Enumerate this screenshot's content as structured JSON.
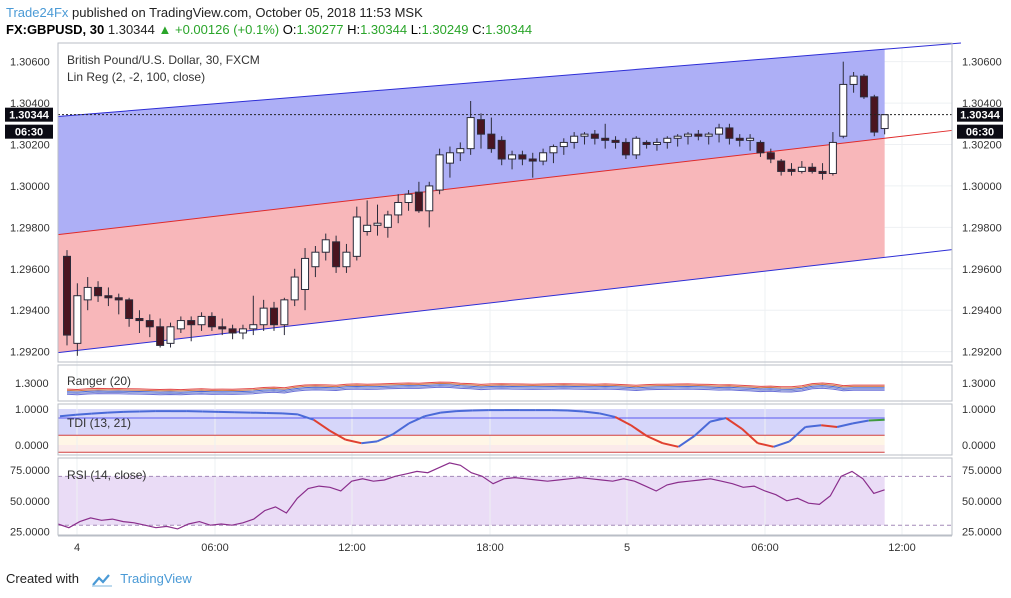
{
  "header": {
    "author": "Trade24Fx",
    "published_text": "published on TradingView.com, October 05, 2018 11:53 MSK",
    "symbol": "FX:GBPUSD, 30",
    "last": "1.30344",
    "change": "+0.00126 (+0.1%)",
    "o_label": "O:",
    "o_value": "1.30277",
    "h_label": "H:",
    "h_value": "1.30344",
    "l_label": "L:",
    "l_value": "1.30249",
    "c_label": "C:",
    "c_value": "1.30344"
  },
  "footer": {
    "created_with": "Created with",
    "brand": "TradingView"
  },
  "colors": {
    "bull_body": "#ffffff",
    "bear_body": "#4a1520",
    "candle_stroke": "#2b2b3a",
    "upper_band": "#a9abf6",
    "lower_band": "#f8b3b6",
    "channel_line": "#2d2dd6",
    "mid_line": "#e02a2a",
    "rsi_line": "#8a2e8c",
    "rsi_fill": "#eadcf6",
    "tdi_blue": "#4a6ad8",
    "tdi_red": "#e04030",
    "tdi_green": "#3f9a3f"
  },
  "chart_data": {
    "type": "candlestick",
    "title": "British Pound/U.S. Dollar, 30, FXCM",
    "indicator_label": "Lin Reg (2, -2, 100, close)",
    "price_ylim": [
      1.2915,
      1.3069
    ],
    "price_ticks": [
      "1.30600",
      "1.30400",
      "1.30200",
      "1.30000",
      "1.29800",
      "1.29600",
      "1.29400",
      "1.29200"
    ],
    "last_price_label": "1.30344",
    "countdown_label": "06:30",
    "x_tick_labels": [
      "4",
      "06:00",
      "12:00",
      "18:00",
      "5",
      "06:00",
      "12:00"
    ],
    "candles": [
      {
        "o": 1.2966,
        "h": 1.2969,
        "l": 1.2923,
        "c": 1.2928
      },
      {
        "o": 1.2924,
        "h": 1.2953,
        "l": 1.2918,
        "c": 1.2947
      },
      {
        "o": 1.2945,
        "h": 1.2956,
        "l": 1.294,
        "c": 1.2951
      },
      {
        "o": 1.2951,
        "h": 1.2954,
        "l": 1.2944,
        "c": 1.2947
      },
      {
        "o": 1.2947,
        "h": 1.2951,
        "l": 1.2942,
        "c": 1.2946
      },
      {
        "o": 1.2946,
        "h": 1.2948,
        "l": 1.2938,
        "c": 1.2945
      },
      {
        "o": 1.2945,
        "h": 1.2946,
        "l": 1.2932,
        "c": 1.2936
      },
      {
        "o": 1.2936,
        "h": 1.294,
        "l": 1.2929,
        "c": 1.2935
      },
      {
        "o": 1.2935,
        "h": 1.2938,
        "l": 1.2927,
        "c": 1.2932
      },
      {
        "o": 1.2932,
        "h": 1.2936,
        "l": 1.2922,
        "c": 1.2923
      },
      {
        "o": 1.2924,
        "h": 1.2934,
        "l": 1.2922,
        "c": 1.2932
      },
      {
        "o": 1.2931,
        "h": 1.2937,
        "l": 1.2929,
        "c": 1.2935
      },
      {
        "o": 1.2935,
        "h": 1.2937,
        "l": 1.2925,
        "c": 1.2933
      },
      {
        "o": 1.2933,
        "h": 1.2939,
        "l": 1.293,
        "c": 1.2937
      },
      {
        "o": 1.2937,
        "h": 1.2939,
        "l": 1.293,
        "c": 1.2932
      },
      {
        "o": 1.2932,
        "h": 1.2936,
        "l": 1.2928,
        "c": 1.2931
      },
      {
        "o": 1.2931,
        "h": 1.2933,
        "l": 1.2926,
        "c": 1.2929
      },
      {
        "o": 1.2929,
        "h": 1.2933,
        "l": 1.2926,
        "c": 1.2931
      },
      {
        "o": 1.2931,
        "h": 1.2947,
        "l": 1.2928,
        "c": 1.2933
      },
      {
        "o": 1.2933,
        "h": 1.2945,
        "l": 1.293,
        "c": 1.2941
      },
      {
        "o": 1.2941,
        "h": 1.2944,
        "l": 1.293,
        "c": 1.2933
      },
      {
        "o": 1.2933,
        "h": 1.2946,
        "l": 1.2928,
        "c": 1.2945
      },
      {
        "o": 1.2945,
        "h": 1.296,
        "l": 1.2942,
        "c": 1.2956
      },
      {
        "o": 1.295,
        "h": 1.297,
        "l": 1.294,
        "c": 1.2965
      },
      {
        "o": 1.2961,
        "h": 1.2971,
        "l": 1.2956,
        "c": 1.2968
      },
      {
        "o": 1.2968,
        "h": 1.2977,
        "l": 1.2964,
        "c": 1.2974
      },
      {
        "o": 1.2973,
        "h": 1.2976,
        "l": 1.2958,
        "c": 1.2961
      },
      {
        "o": 1.2961,
        "h": 1.2972,
        "l": 1.2958,
        "c": 1.2968
      },
      {
        "o": 1.2966,
        "h": 1.299,
        "l": 1.2964,
        "c": 1.2985
      },
      {
        "o": 1.2978,
        "h": 1.2993,
        "l": 1.2976,
        "c": 1.2981
      },
      {
        "o": 1.2981,
        "h": 1.2991,
        "l": 1.2976,
        "c": 1.2982
      },
      {
        "o": 1.298,
        "h": 1.2988,
        "l": 1.2975,
        "c": 1.2986
      },
      {
        "o": 1.2986,
        "h": 1.2996,
        "l": 1.2982,
        "c": 1.2992
      },
      {
        "o": 1.2992,
        "h": 1.2998,
        "l": 1.2988,
        "c": 1.2996
      },
      {
        "o": 1.2997,
        "h": 1.3002,
        "l": 1.2987,
        "c": 1.2988
      },
      {
        "o": 1.2988,
        "h": 1.3002,
        "l": 1.298,
        "c": 1.3
      },
      {
        "o": 1.2998,
        "h": 1.3018,
        "l": 1.2996,
        "c": 1.3015
      },
      {
        "o": 1.3011,
        "h": 1.3019,
        "l": 1.3004,
        "c": 1.3016
      },
      {
        "o": 1.3016,
        "h": 1.3021,
        "l": 1.3012,
        "c": 1.3018
      },
      {
        "o": 1.3018,
        "h": 1.3041,
        "l": 1.3015,
        "c": 1.3033
      },
      {
        "o": 1.3032,
        "h": 1.3035,
        "l": 1.3018,
        "c": 1.3025
      },
      {
        "o": 1.3025,
        "h": 1.3033,
        "l": 1.3016,
        "c": 1.3018
      },
      {
        "o": 1.3022,
        "h": 1.3024,
        "l": 1.301,
        "c": 1.3013
      },
      {
        "o": 1.3013,
        "h": 1.3017,
        "l": 1.3008,
        "c": 1.3015
      },
      {
        "o": 1.3015,
        "h": 1.3017,
        "l": 1.301,
        "c": 1.3013
      },
      {
        "o": 1.3013,
        "h": 1.3016,
        "l": 1.3004,
        "c": 1.3012
      },
      {
        "o": 1.3012,
        "h": 1.3018,
        "l": 1.301,
        "c": 1.3016
      },
      {
        "o": 1.3016,
        "h": 1.302,
        "l": 1.3011,
        "c": 1.3019
      },
      {
        "o": 1.3019,
        "h": 1.3023,
        "l": 1.3015,
        "c": 1.3021
      },
      {
        "o": 1.3021,
        "h": 1.3026,
        "l": 1.3018,
        "c": 1.3024
      },
      {
        "o": 1.3024,
        "h": 1.3026,
        "l": 1.302,
        "c": 1.3025
      },
      {
        "o": 1.3025,
        "h": 1.3027,
        "l": 1.302,
        "c": 1.3023
      },
      {
        "o": 1.3023,
        "h": 1.303,
        "l": 1.3018,
        "c": 1.3022
      },
      {
        "o": 1.3022,
        "h": 1.3024,
        "l": 1.3018,
        "c": 1.3021
      },
      {
        "o": 1.3021,
        "h": 1.3023,
        "l": 1.3013,
        "c": 1.3015
      },
      {
        "o": 1.3015,
        "h": 1.3024,
        "l": 1.3013,
        "c": 1.3023
      },
      {
        "o": 1.3021,
        "h": 1.3022,
        "l": 1.3018,
        "c": 1.302
      },
      {
        "o": 1.302,
        "h": 1.3023,
        "l": 1.3017,
        "c": 1.3021
      },
      {
        "o": 1.3021,
        "h": 1.3024,
        "l": 1.3018,
        "c": 1.3023
      },
      {
        "o": 1.3023,
        "h": 1.3025,
        "l": 1.3019,
        "c": 1.3024
      },
      {
        "o": 1.3024,
        "h": 1.3026,
        "l": 1.302,
        "c": 1.3025
      },
      {
        "o": 1.3025,
        "h": 1.3027,
        "l": 1.3022,
        "c": 1.3024
      },
      {
        "o": 1.3024,
        "h": 1.3026,
        "l": 1.302,
        "c": 1.3025
      },
      {
        "o": 1.3025,
        "h": 1.303,
        "l": 1.3021,
        "c": 1.3028
      },
      {
        "o": 1.3028,
        "h": 1.303,
        "l": 1.302,
        "c": 1.3023
      },
      {
        "o": 1.3023,
        "h": 1.3025,
        "l": 1.3019,
        "c": 1.3022
      },
      {
        "o": 1.3022,
        "h": 1.3025,
        "l": 1.3017,
        "c": 1.3023
      },
      {
        "o": 1.3021,
        "h": 1.3022,
        "l": 1.3014,
        "c": 1.3016
      },
      {
        "o": 1.3016,
        "h": 1.3018,
        "l": 1.3011,
        "c": 1.3013
      },
      {
        "o": 1.3012,
        "h": 1.3013,
        "l": 1.3005,
        "c": 1.3007
      },
      {
        "o": 1.3008,
        "h": 1.3011,
        "l": 1.3005,
        "c": 1.3007
      },
      {
        "o": 1.3007,
        "h": 1.3012,
        "l": 1.3006,
        "c": 1.3009
      },
      {
        "o": 1.3009,
        "h": 1.3011,
        "l": 1.3006,
        "c": 1.3007
      },
      {
        "o": 1.3007,
        "h": 1.3011,
        "l": 1.3003,
        "c": 1.3006
      },
      {
        "o": 1.3006,
        "h": 1.3026,
        "l": 1.3005,
        "c": 1.3021
      },
      {
        "o": 1.3024,
        "h": 1.306,
        "l": 1.3023,
        "c": 1.3049
      },
      {
        "o": 1.3049,
        "h": 1.3055,
        "l": 1.3045,
        "c": 1.3053
      },
      {
        "o": 1.3053,
        "h": 1.3054,
        "l": 1.3042,
        "c": 1.3043
      },
      {
        "o": 1.3043,
        "h": 1.3044,
        "l": 1.3024,
        "c": 1.3026
      },
      {
        "o": 1.30277,
        "h": 1.30344,
        "l": 1.30249,
        "c": 1.30344
      }
    ],
    "lin_reg": {
      "upper_start": 1.30335,
      "upper_end": 1.3066,
      "mid_start": 1.29765,
      "mid_end": 1.3023,
      "lower_start": 1.29195,
      "lower_end": 1.29655
    },
    "ranger": {
      "label": "Ranger (20)",
      "tick": "1.3000"
    },
    "tdi": {
      "label": "TDI (13, 21)",
      "ticks": [
        "1.0000",
        "0.0000"
      ],
      "values": [
        0.8,
        0.84,
        0.87,
        0.9,
        0.92,
        0.93,
        0.94,
        0.94,
        0.94,
        0.93,
        0.92,
        0.91,
        0.9,
        0.89,
        0.88,
        0.85,
        0.7,
        0.4,
        0.15,
        0.05,
        0.1,
        0.3,
        0.6,
        0.8,
        0.9,
        0.94,
        0.96,
        0.97,
        0.97,
        0.97,
        0.97,
        0.97,
        0.96,
        0.93,
        0.88,
        0.78,
        0.55,
        0.25,
        0.05,
        -0.05,
        0.25,
        0.65,
        0.75,
        0.45,
        0.05,
        -0.05,
        0.1,
        0.5,
        0.55,
        0.5,
        0.6,
        0.68,
        0.7
      ]
    },
    "rsi": {
      "label": "RSI (14, close)",
      "ylim": [
        22,
        85
      ],
      "ticks": [
        75,
        50,
        25
      ],
      "tick_labels": [
        "75.0000",
        "50.0000",
        "25.0000"
      ],
      "band": [
        30,
        70
      ],
      "values": [
        31,
        28,
        33,
        36,
        34,
        35,
        33,
        32,
        30,
        28,
        29,
        27,
        31,
        33,
        30,
        31,
        30,
        32,
        35,
        42,
        45,
        40,
        52,
        60,
        62,
        61,
        58,
        66,
        68,
        66,
        67,
        70,
        72,
        74,
        73,
        77,
        81,
        79,
        73,
        70,
        64,
        68,
        69,
        68,
        67,
        66,
        67,
        68,
        69,
        68,
        67,
        66,
        68,
        66,
        62,
        58,
        63,
        65,
        66,
        67,
        68,
        66,
        64,
        61,
        62,
        58,
        55,
        50,
        52,
        48,
        47,
        54,
        70,
        74,
        68,
        56,
        59
      ]
    }
  }
}
